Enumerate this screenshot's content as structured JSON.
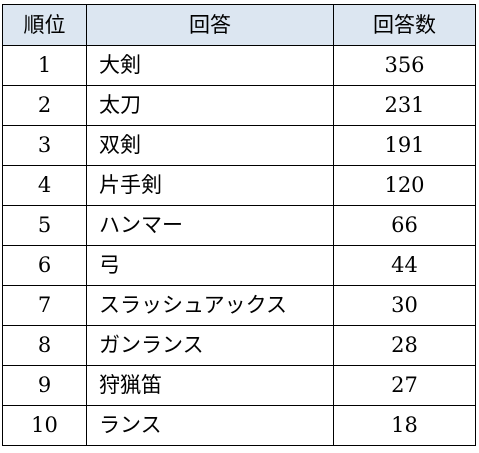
{
  "table": {
    "headers": {
      "rank": "順位",
      "answer": "回答",
      "count": "回答数"
    },
    "rows": [
      {
        "rank": "1",
        "answer": "大剣",
        "count": "356"
      },
      {
        "rank": "2",
        "answer": "太刀",
        "count": "231"
      },
      {
        "rank": "3",
        "answer": "双剣",
        "count": "191"
      },
      {
        "rank": "4",
        "answer": "片手剣",
        "count": "120"
      },
      {
        "rank": "5",
        "answer": "ハンマー",
        "count": "66"
      },
      {
        "rank": "6",
        "answer": "弓",
        "count": "44"
      },
      {
        "rank": "7",
        "answer": "スラッシュアックス",
        "count": "30"
      },
      {
        "rank": "8",
        "answer": "ガンランス",
        "count": "28"
      },
      {
        "rank": "9",
        "answer": "狩猟笛",
        "count": "27"
      },
      {
        "rank": "10",
        "answer": "ランス",
        "count": "18"
      }
    ]
  },
  "colors": {
    "header_bg": "#dce6f1",
    "border": "#000000"
  }
}
